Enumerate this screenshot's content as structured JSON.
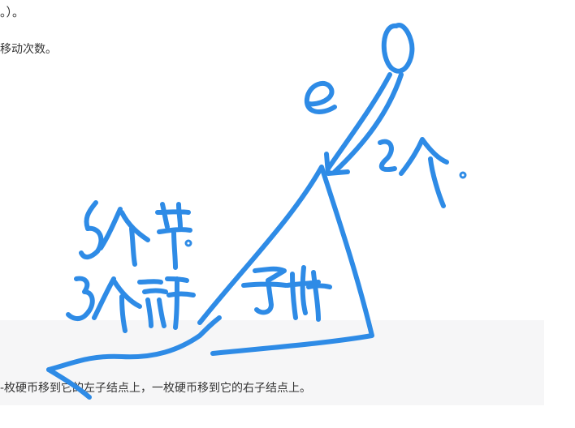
{
  "content": {
    "line_top": "。）。",
    "line_moves": "移动次数。",
    "line_bottom": "-枚硬币移到它的左子结点上，一枚硬币移到它的右子结点上。"
  },
  "colors": {
    "annotation_ink": "#2e8be6",
    "text": "#333333",
    "panel_bg": "#f6f6f7"
  }
}
